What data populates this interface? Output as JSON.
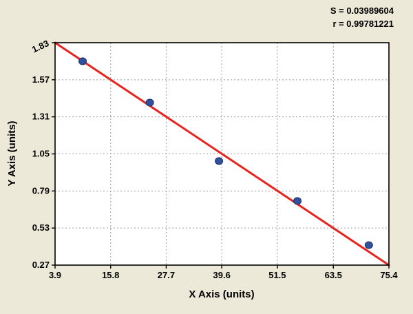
{
  "stats": {
    "s": "S = 0.03989604",
    "r": "r = 0.99781221"
  },
  "chart_data": {
    "type": "scatter",
    "title": "",
    "xlabel": "X Axis (units)",
    "ylabel": "Y Axis (units)",
    "xlim": [
      3.9,
      75.4
    ],
    "ylim": [
      0.27,
      1.83
    ],
    "xticks": [
      "3.9",
      "15.8",
      "27.7",
      "39.6",
      "51.5",
      "63.5",
      "75.4"
    ],
    "yticks": [
      "1.83",
      "1.57",
      "1.31",
      "1.05",
      "0.79",
      "0.53",
      "0.27"
    ],
    "grid": true,
    "legend": "none",
    "points": [
      {
        "x": 9.8,
        "y": 1.7
      },
      {
        "x": 24.2,
        "y": 1.41
      },
      {
        "x": 39.0,
        "y": 1.0
      },
      {
        "x": 55.8,
        "y": 0.72
      },
      {
        "x": 71.1,
        "y": 0.41
      }
    ],
    "regression_line": {
      "x1": 3.9,
      "y1": 1.83,
      "x2": 75.4,
      "y2": 0.27
    },
    "colors": {
      "background": "#ece9d8",
      "plot_background": "#ffffff",
      "grid": "#9b9b9b",
      "point": "#31519f",
      "point_edge": "#1b2f66",
      "line": "#e8231e",
      "border": "#000000",
      "text": "#000000"
    }
  }
}
